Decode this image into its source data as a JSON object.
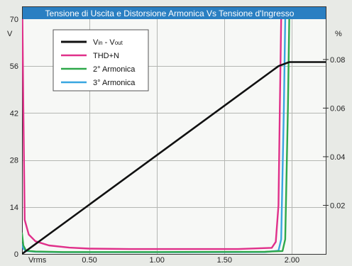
{
  "chart_data": {
    "type": "line",
    "title": "Tensione di Uscita e Distorsione Armonica Vs Tensione d'Ingresso",
    "title_bar_color": "#2a7fc2",
    "x_unit": "Vrms",
    "y_left_unit": "V",
    "y_right_unit": "%",
    "xlim": [
      0,
      2.25
    ],
    "y_left_lim": [
      0,
      70
    ],
    "y_right_lim": [
      0,
      0.0966
    ],
    "x_ticks": [
      "0.50",
      "1.00",
      "1.50",
      "2.00"
    ],
    "x_tick_values": [
      0.5,
      1.0,
      1.5,
      2.0
    ],
    "y_left_ticks": [
      "0",
      "14",
      "28",
      "42",
      "56",
      "70"
    ],
    "y_left_tick_values": [
      0,
      14,
      28,
      42,
      56,
      70
    ],
    "y_right_ticks": [
      "0.02",
      "0.04",
      "0.06",
      "0.08"
    ],
    "y_right_tick_values": [
      0.02,
      0.04,
      0.06,
      0.08
    ],
    "grid": true,
    "legend_position": "top-left",
    "legend": [
      {
        "label": "Vin - Vout",
        "label_main": "V",
        "sub1": "in",
        "mid": " - V",
        "sub2": "out",
        "color": "#111111"
      },
      {
        "label": "THD+N",
        "color": "#e0308a"
      },
      {
        "label": "2° Armonica",
        "color": "#2ea84a"
      },
      {
        "label": "3° Armonica",
        "color": "#38a6e0"
      }
    ],
    "series": [
      {
        "name": "Vin - Vout",
        "axis": "left",
        "color": "#111111",
        "x": [
          0,
          1.9,
          1.98,
          2.25
        ],
        "y": [
          0,
          56,
          57.2,
          57.2
        ]
      },
      {
        "name": "THD+N",
        "axis": "right",
        "color": "#e0308a",
        "x": [
          0.003,
          0.01,
          0.02,
          0.05,
          0.1,
          0.2,
          0.35,
          0.5,
          0.8,
          1.2,
          1.6,
          1.85,
          1.88,
          1.9,
          1.91,
          1.92
        ],
        "y": [
          0.0966,
          0.06,
          0.014,
          0.008,
          0.0052,
          0.0035,
          0.0026,
          0.0022,
          0.002,
          0.002,
          0.002,
          0.0025,
          0.005,
          0.02,
          0.06,
          0.0966
        ]
      },
      {
        "name": "2° Armonica",
        "axis": "right",
        "color": "#2ea84a",
        "x": [
          0,
          0.01,
          0.03,
          0.06,
          0.1,
          0.3,
          1.0,
          1.8,
          1.93,
          1.95,
          1.97,
          1.98
        ],
        "y": [
          0.0085,
          0.0035,
          0.0014,
          0.0012,
          0.001,
          0.0008,
          0.0008,
          0.0009,
          0.0012,
          0.006,
          0.06,
          0.0966
        ]
      },
      {
        "name": "3° Armonica",
        "axis": "right",
        "color": "#38a6e0",
        "x": [
          0,
          0.01,
          0.03,
          0.06,
          0.1,
          0.3,
          1.0,
          1.8,
          1.9,
          1.92,
          1.94,
          1.95
        ],
        "y": [
          0.004,
          0.0022,
          0.0012,
          0.0011,
          0.0009,
          0.0007,
          0.0007,
          0.0008,
          0.0013,
          0.006,
          0.06,
          0.0966
        ]
      }
    ]
  }
}
